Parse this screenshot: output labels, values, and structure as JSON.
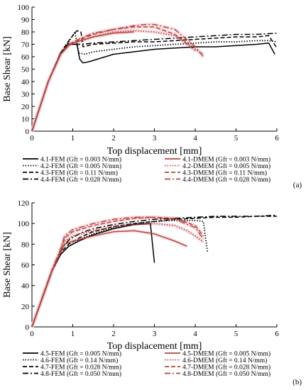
{
  "chart_data": [
    {
      "type": "line",
      "panel_label": "(a)",
      "xlabel": "Top displacement  [mm]",
      "ylabel": "Base Shear  [kN]",
      "xlim": [
        0,
        6
      ],
      "ylim": [
        0,
        100
      ],
      "xticks": [
        0,
        1,
        2,
        3,
        4,
        5,
        6
      ],
      "yticks": [
        0,
        10,
        20,
        30,
        40,
        50,
        60,
        70,
        80,
        90,
        100
      ],
      "grid": false,
      "legend_position": "below",
      "series": [
        {
          "name": "4.1-FEM (Gft = 0.003 N/mm)",
          "color": "#000000",
          "dash": "solid",
          "x": [
            0,
            0.4,
            0.7,
            0.9,
            1.1,
            1.17,
            1.25,
            1.4,
            1.6,
            2.0,
            2.5,
            3.0,
            3.5,
            4.0,
            4.5,
            5.0,
            5.5,
            5.8,
            5.95
          ],
          "y": [
            0,
            40,
            62,
            70,
            70,
            58,
            55,
            56,
            58,
            62,
            64,
            66,
            67,
            68,
            68,
            69,
            70,
            71,
            62
          ]
        },
        {
          "name": "4.2-FEM (Gft = 0.005 N/mm)",
          "color": "#000000",
          "dash": "dot",
          "x": [
            0,
            0.4,
            0.7,
            0.9,
            1.05,
            1.15,
            1.3,
            1.5,
            2.0,
            2.5,
            3.0,
            3.5,
            4.0,
            4.5,
            5.0,
            5.5,
            5.8,
            6.0
          ],
          "y": [
            0,
            40,
            62,
            72,
            80,
            63,
            62,
            64,
            66,
            68,
            69,
            70,
            71,
            72,
            72,
            73,
            73,
            72
          ]
        },
        {
          "name": "4.3-FEM (Gft = 0.11 N/mm)",
          "color": "#000000",
          "dash": "dash",
          "x": [
            0,
            0.4,
            0.7,
            0.9,
            1.1,
            1.2,
            1.25,
            1.5,
            2.0,
            2.5,
            3.0,
            3.5,
            4.0,
            4.5,
            5.0,
            5.5,
            5.8,
            6.0
          ],
          "y": [
            0,
            40,
            63,
            73,
            81,
            80,
            68,
            70,
            71,
            72,
            72,
            73,
            74,
            75,
            76,
            76,
            77,
            67
          ]
        },
        {
          "name": "4.4-FEM (Gft = 0.028 N/mm)",
          "color": "#000000",
          "dash": "dashdot",
          "x": [
            0,
            0.4,
            0.7,
            0.9,
            1.0,
            1.2,
            1.5,
            2.0,
            2.5,
            3.0,
            3.5,
            4.0,
            4.5,
            5.0,
            5.5,
            6.0
          ],
          "y": [
            0,
            40,
            63,
            71,
            70,
            70,
            71,
            72,
            73,
            74,
            75,
            76,
            77,
            78,
            78,
            79
          ]
        },
        {
          "name": "4.1-DMEM (Gft = 0.003 N/mm)",
          "color": "#b5463a",
          "dash": "solid",
          "x": [
            0,
            0.4,
            0.7,
            0.9,
            1.0,
            1.2,
            1.5,
            2.0,
            2.5
          ],
          "y": [
            0,
            40,
            62,
            69,
            71,
            73,
            76,
            79,
            80
          ]
        },
        {
          "name": "4.2-DMEM (Gft = 0.005 N/mm)",
          "color": "#b5463a",
          "dash": "dot",
          "x": [
            0,
            0.4,
            0.7,
            0.9,
            1.2,
            1.5,
            2.0,
            2.5,
            3.0,
            3.5,
            3.8,
            4.0,
            4.2
          ],
          "y": [
            0,
            40,
            62,
            70,
            73,
            76,
            80,
            81,
            80,
            77,
            71,
            66,
            62
          ]
        },
        {
          "name": "4.3-DMEM (Gft = 0.11 N/mm)",
          "color": "#b5463a",
          "dash": "dash",
          "x": [
            0,
            0.4,
            0.7,
            0.9,
            1.2,
            1.5,
            2.0,
            2.5,
            3.0,
            3.5,
            3.8,
            4.0
          ],
          "y": [
            0,
            40,
            62,
            70,
            74,
            78,
            82,
            84,
            84,
            78,
            70,
            65
          ]
        },
        {
          "name": "4.4-DMEM (Gft = 0.028 N/mm)",
          "color": "#b5463a",
          "dash": "dashdot",
          "x": [
            0,
            0.4,
            0.7,
            0.9,
            1.2,
            1.5,
            2.0,
            2.5,
            2.8,
            3.0,
            3.5,
            4.0,
            4.2
          ],
          "y": [
            0,
            40,
            62,
            70,
            75,
            79,
            82,
            85,
            86,
            86,
            82,
            68,
            60
          ]
        }
      ]
    },
    {
      "type": "line",
      "panel_label": "(b)",
      "xlabel": "Top displacement  [mm]",
      "ylabel": "Base Shear  [kN]",
      "xlim": [
        0,
        6
      ],
      "ylim": [
        0,
        120
      ],
      "xticks": [
        0,
        1,
        2,
        3,
        4,
        5,
        6
      ],
      "yticks": [
        0,
        20,
        40,
        60,
        80,
        100,
        120
      ],
      "grid": false,
      "legend_position": "below",
      "series": [
        {
          "name": "4.5-FEM (Gft = 0.005 N/mm)",
          "color": "#000000",
          "dash": "solid",
          "x": [
            0,
            0.5,
            0.7,
            0.9,
            1.2,
            1.5,
            2.0,
            2.5,
            2.9,
            3.0
          ],
          "y": [
            0,
            55,
            70,
            78,
            84,
            89,
            95,
            99,
            100,
            62
          ]
        },
        {
          "name": "4.6-FEM (Gft = 0.14 N/mm)",
          "color": "#000000",
          "dash": "dot",
          "x": [
            0,
            0.5,
            0.7,
            0.9,
            1.2,
            1.5,
            2.0,
            2.5,
            3.0,
            3.5,
            4.0,
            4.2,
            4.3
          ],
          "y": [
            0,
            55,
            70,
            78,
            85,
            90,
            96,
            100,
            102,
            103,
            103,
            102,
            72
          ]
        },
        {
          "name": "4.7-FEM (Gft = 0.028 N/mm)",
          "color": "#000000",
          "dash": "dash",
          "x": [
            0,
            0.5,
            0.7,
            0.9,
            1.2,
            1.5,
            2.0,
            2.5,
            3.0,
            3.5,
            4.0,
            4.5,
            5.0,
            5.5,
            6.0
          ],
          "y": [
            0,
            56,
            72,
            80,
            87,
            92,
            97,
            100,
            102,
            104,
            105,
            106,
            106,
            107,
            107
          ]
        },
        {
          "name": "4.8-FEM (Gft = 0.050 N/mm)",
          "color": "#000000",
          "dash": "dashdot",
          "x": [
            0,
            0.5,
            0.7,
            0.9,
            1.2,
            1.5,
            2.0,
            2.5,
            3.0,
            3.5,
            4.0,
            4.5,
            5.0,
            5.5,
            6.0
          ],
          "y": [
            0,
            56,
            74,
            84,
            91,
            95,
            99,
            102,
            104,
            105,
            106,
            107,
            107,
            107,
            108
          ]
        },
        {
          "name": "4.5-DMEM (Gft = 0.005 N/mm)",
          "color": "#b5463a",
          "dash": "solid",
          "x": [
            0,
            0.5,
            0.7,
            0.8,
            1.0,
            1.5,
            2.0,
            2.5,
            3.0,
            3.5,
            3.8
          ],
          "y": [
            0,
            55,
            72,
            80,
            83,
            88,
            92,
            93,
            90,
            83,
            78
          ]
        },
        {
          "name": "4.6-DMEM (Gft = 0.14 N/mm)",
          "color": "#b5463a",
          "dash": "dot",
          "x": [
            0,
            0.5,
            0.7,
            0.8,
            1.0,
            1.5,
            2.0,
            2.5,
            3.0,
            3.5,
            3.8,
            4.0,
            4.2
          ],
          "y": [
            0,
            55,
            73,
            83,
            88,
            93,
            97,
            99,
            100,
            98,
            93,
            88,
            82
          ]
        },
        {
          "name": "4.7-DMEM (Gft = 0.028 N/mm)",
          "color": "#b5463a",
          "dash": "dash",
          "x": [
            0,
            0.5,
            0.7,
            0.8,
            1.0,
            1.5,
            2.0,
            2.5,
            3.0,
            3.5,
            4.0,
            4.2
          ],
          "y": [
            0,
            55,
            74,
            86,
            92,
            98,
            102,
            105,
            106,
            105,
            98,
            88
          ]
        },
        {
          "name": "4.8-DMEM (Gft = 0.050 N/mm)",
          "color": "#b5463a",
          "dash": "dashdot",
          "x": [
            0,
            0.5,
            0.7,
            0.8,
            1.0,
            1.5,
            2.0,
            2.5,
            3.0,
            3.5,
            4.0,
            4.2
          ],
          "y": [
            0,
            56,
            75,
            88,
            94,
            100,
            104,
            106,
            106,
            104,
            96,
            85
          ]
        }
      ]
    }
  ]
}
